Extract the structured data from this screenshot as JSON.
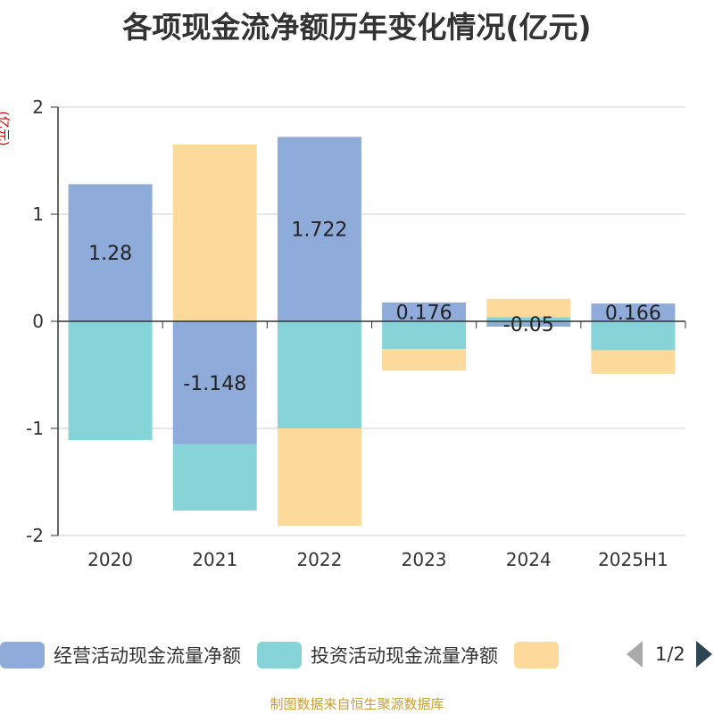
{
  "chart_data": {
    "type": "bar",
    "stacked": true,
    "title": "各项现金流净额历年变化情况(亿元)",
    "ylabel": "(亿元)",
    "categories": [
      "2020",
      "2021",
      "2022",
      "2023",
      "2024",
      "2025H1"
    ],
    "ylim": [
      -2,
      2
    ],
    "yticks": [
      2,
      1,
      0,
      -1,
      -2
    ],
    "grid": true,
    "legend_position": "bottom",
    "series": [
      {
        "name": "经营活动现金流量净额",
        "color": "#8fabd9",
        "values": [
          1.28,
          -1.148,
          1.722,
          0.176,
          -0.05,
          0.166
        ],
        "labels": [
          "1.28",
          "-1.148",
          "1.722",
          "0.176",
          "-0.05",
          "0.166"
        ]
      },
      {
        "name": "投资活动现金流量净额",
        "color": "#87d4d8",
        "values": [
          -1.11,
          -0.62,
          -1.0,
          -0.26,
          0.04,
          -0.27
        ]
      },
      {
        "name": "",
        "color": "#fdd99b",
        "values": [
          0,
          1.65,
          -0.91,
          -0.2,
          0.17,
          -0.22
        ]
      }
    ]
  },
  "legend": {
    "items": [
      {
        "label": "经营活动现金流量净额",
        "color": "#8fabd9"
      },
      {
        "label": "投资活动现金流量净额",
        "color": "#87d4d8"
      },
      {
        "label": "",
        "color": "#fdd99b"
      }
    ],
    "pager": "1/2"
  },
  "source_note": "制图数据来自恒生聚源数据库"
}
